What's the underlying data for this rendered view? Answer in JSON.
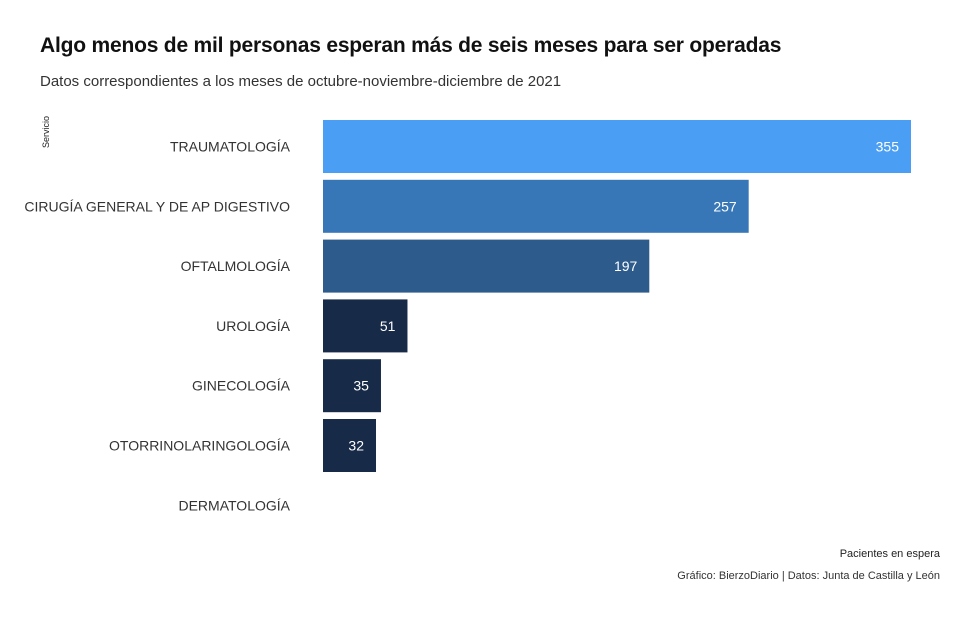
{
  "title": "Algo menos de mil personas esperan más de seis meses para ser operadas",
  "subtitle": "Datos correspondientes a los meses de octubre-noviembre-diciembre de 2021",
  "caption": "Gráfico: BierzoDiario | Datos: Junta de Castilla y León",
  "chart_data": {
    "type": "bar",
    "orientation": "horizontal",
    "categories": [
      "TRAUMATOLOGÍA",
      "CIRUGÍA GENERAL Y DE AP DIGESTIVO",
      "OFTALMOLOGÍA",
      "UROLOGÍA",
      "GINECOLOGÍA",
      "OTORRINOLARINGOLOGÍA",
      "DERMATOLOGÍA"
    ],
    "values": [
      355,
      257,
      197,
      51,
      35,
      32,
      0
    ],
    "value_labels": [
      "355",
      "257",
      "197",
      "51",
      "35",
      "32",
      ""
    ],
    "colors": [
      "#4a9ff5",
      "#3777b8",
      "#2c5b8c",
      "#172a47",
      "#172a47",
      "#172a47",
      "#172a47"
    ],
    "xlabel": "Pacientes en espera",
    "ylabel": "Servicio",
    "xlim": [
      0,
      355
    ],
    "grid": false,
    "legend": "none"
  }
}
